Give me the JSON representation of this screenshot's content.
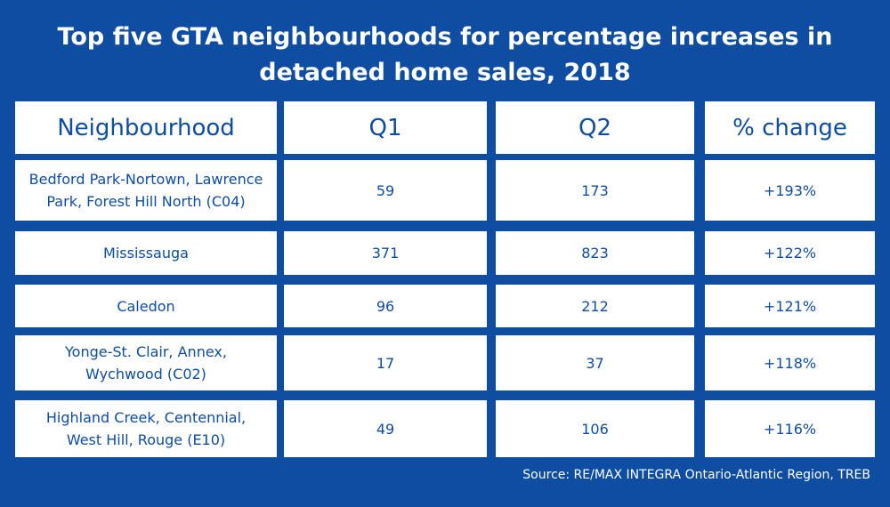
{
  "title": {
    "line1": "Top five GTA neighbourhoods for percentage increases in",
    "line2": "detached home sales, 2018"
  },
  "chart_data": {
    "type": "table",
    "columns": [
      "Neighbourhood",
      "Q1",
      "Q2",
      "% change"
    ],
    "rows": [
      {
        "neighbourhood": [
          "Bedford Park-Nortown, Lawrence",
          "Park, Forest Hill North (C04)"
        ],
        "q1": "59",
        "q2": "173",
        "change": "+193%"
      },
      {
        "neighbourhood": [
          "Mississauga"
        ],
        "q1": "371",
        "q2": "823",
        "change": "+122%"
      },
      {
        "neighbourhood": [
          "Caledon"
        ],
        "q1": "96",
        "q2": "212",
        "change": "+121%"
      },
      {
        "neighbourhood": [
          "Yonge-St. Clair, Annex,",
          "Wychwood (C02)"
        ],
        "q1": "17",
        "q2": "37",
        "change": "+118%"
      },
      {
        "neighbourhood": [
          "Highland Creek, Centennial,",
          "West Hill, Rouge (E10)"
        ],
        "q1": "49",
        "q2": "106",
        "change": "+116%"
      }
    ]
  },
  "source": "Source:  RE/MAX INTEGRA Ontario-Atlantic Region, TREB",
  "colors": {
    "background": "#0e4da1",
    "cell": "#ffffff",
    "text": "#0e4da1"
  }
}
